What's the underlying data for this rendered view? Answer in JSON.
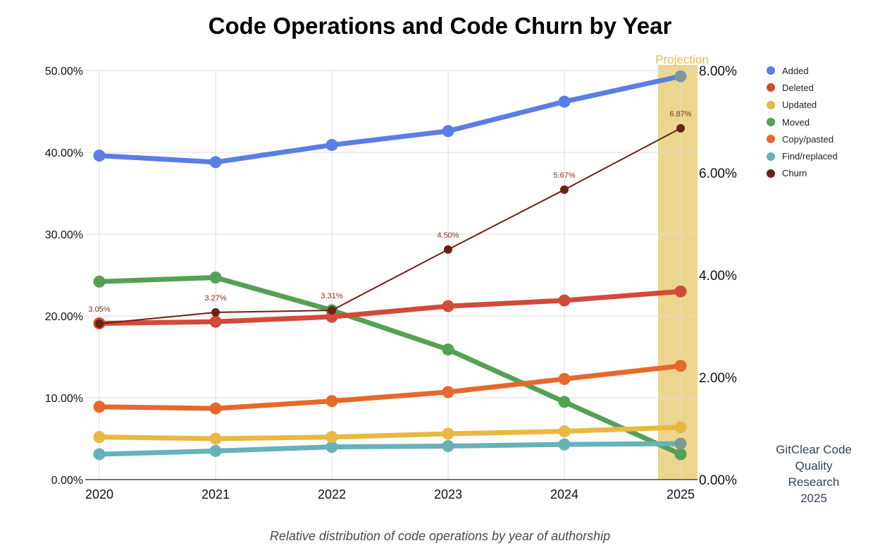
{
  "chart_data": {
    "type": "line",
    "title": "Code Operations and Code Churn by Year",
    "caption": "Relative distribution of code operations by year of authorship",
    "credit": [
      "GitClear Code",
      "Quality",
      "Research",
      "2025"
    ],
    "projection_label": "Projection",
    "projection_category": "2025",
    "categories": [
      "2020",
      "2021",
      "2022",
      "2023",
      "2024",
      "2025"
    ],
    "y_left": {
      "ticks": [
        "0.00%",
        "10.00%",
        "20.00%",
        "30.00%",
        "40.00%",
        "50.00%"
      ],
      "range": [
        0,
        50
      ],
      "grid": true
    },
    "y_right": {
      "ticks": [
        "0.00%",
        "2.00%",
        "4.00%",
        "6.00%",
        "8.00%"
      ],
      "range": [
        0,
        8
      ]
    },
    "legend_position": "right",
    "series": [
      {
        "name": "Added",
        "color": "#5b7de6",
        "axis": "left",
        "values": [
          39.6,
          38.8,
          40.9,
          42.6,
          46.2,
          49.3
        ]
      },
      {
        "name": "Deleted",
        "color": "#d24a3a",
        "axis": "left",
        "values": [
          19.1,
          19.3,
          19.9,
          21.2,
          21.9,
          23.0
        ]
      },
      {
        "name": "Updated",
        "color": "#e9b842",
        "axis": "left",
        "values": [
          5.2,
          5.0,
          5.2,
          5.6,
          5.9,
          6.4
        ]
      },
      {
        "name": "Moved",
        "color": "#56a055",
        "axis": "left",
        "values": [
          24.2,
          24.7,
          20.7,
          15.9,
          9.5,
          3.1
        ]
      },
      {
        "name": "Copy/pasted",
        "color": "#e6692c",
        "axis": "left",
        "values": [
          8.9,
          8.7,
          9.6,
          10.7,
          12.3,
          13.9
        ]
      },
      {
        "name": "Find/replaced",
        "color": "#66b2b9",
        "axis": "left",
        "values": [
          3.1,
          3.5,
          4.0,
          4.1,
          4.3,
          4.4
        ]
      },
      {
        "name": "Churn",
        "color": "#6e2015",
        "axis": "right",
        "values": [
          3.05,
          3.27,
          3.31,
          4.5,
          5.67,
          6.87
        ],
        "labels": [
          "3.05%",
          "3.27%",
          "3.31%",
          "4.50%",
          "5.67%",
          "6.87%"
        ]
      }
    ]
  }
}
